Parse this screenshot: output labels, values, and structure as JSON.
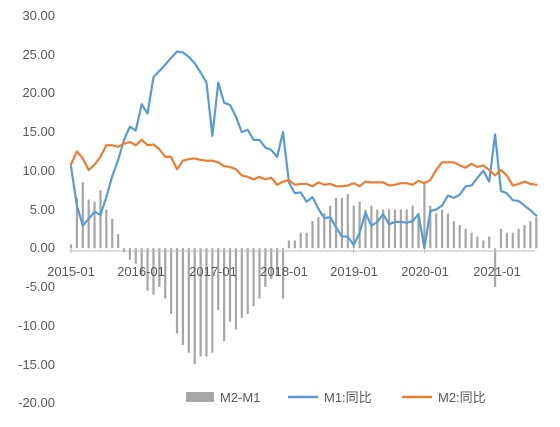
{
  "chart_data": {
    "type": "line",
    "title": "",
    "xlabel": "",
    "ylabel": "",
    "ylim": [
      -20,
      30
    ],
    "yticks": [
      "30.00",
      "25.00",
      "20.00",
      "15.00",
      "10.00",
      "5.00",
      "0.00",
      "-5.00",
      "-10.00",
      "-15.00",
      "-20.00"
    ],
    "xticks": [
      "2015-01",
      "2016-01",
      "2017-01",
      "2018-01",
      "2019-01",
      "2020-01",
      "2021-01"
    ],
    "grid": false,
    "legend_position": "bottom",
    "x": [
      "2015-01",
      "2015-02",
      "2015-03",
      "2015-04",
      "2015-05",
      "2015-06",
      "2015-07",
      "2015-08",
      "2015-09",
      "2015-10",
      "2015-11",
      "2015-12",
      "2016-01",
      "2016-02",
      "2016-03",
      "2016-04",
      "2016-05",
      "2016-06",
      "2016-07",
      "2016-08",
      "2016-09",
      "2016-10",
      "2016-11",
      "2016-12",
      "2017-01",
      "2017-02",
      "2017-03",
      "2017-04",
      "2017-05",
      "2017-06",
      "2017-07",
      "2017-08",
      "2017-09",
      "2017-10",
      "2017-11",
      "2017-12",
      "2018-01",
      "2018-02",
      "2018-03",
      "2018-04",
      "2018-05",
      "2018-06",
      "2018-07",
      "2018-08",
      "2018-09",
      "2018-10",
      "2018-11",
      "2018-12",
      "2019-01",
      "2019-02",
      "2019-03",
      "2019-04",
      "2019-05",
      "2019-06",
      "2019-07",
      "2019-08",
      "2019-09",
      "2019-10",
      "2019-11",
      "2019-12",
      "2020-01",
      "2020-02",
      "2020-03",
      "2020-04",
      "2020-05",
      "2020-06",
      "2020-07",
      "2020-08",
      "2020-09",
      "2020-10",
      "2020-11",
      "2020-12",
      "2021-01",
      "2021-02",
      "2021-03",
      "2021-04",
      "2021-05",
      "2021-06",
      "2021-07",
      "2021-08"
    ],
    "series": [
      {
        "name": "M2-M1",
        "type": "bar",
        "color": "#a6a6a6",
        "values": [
          0.5,
          6.5,
          8.5,
          6.3,
          6.0,
          7.5,
          5.0,
          3.8,
          1.8,
          -0.5,
          -1.5,
          -2.0,
          -3.5,
          -5.5,
          -6.0,
          -5.0,
          -6.5,
          -8.5,
          -11.0,
          -12.5,
          -13.5,
          -15.0,
          -14.0,
          -14.0,
          -13.5,
          -8.0,
          -12.0,
          -9.5,
          -10.5,
          -9.0,
          -8.5,
          -7.5,
          -6.5,
          -5.0,
          -4.0,
          -3.5,
          -6.5,
          1.0,
          1.0,
          2.0,
          2.0,
          3.5,
          4.0,
          4.5,
          5.5,
          6.5,
          6.5,
          7.0,
          5.5,
          6.0,
          5.0,
          5.5,
          5.0,
          5.0,
          5.0,
          5.0,
          5.0,
          5.0,
          5.5,
          4.5,
          8.5,
          5.5,
          4.5,
          5.0,
          4.5,
          3.5,
          3.0,
          2.5,
          2.0,
          1.5,
          1.0,
          1.5,
          -5.0,
          2.5,
          2.0,
          2.0,
          2.5,
          3.0,
          3.5,
          4.0
        ]
      },
      {
        "name": "M1:同比",
        "type": "line",
        "color": "#5b9bd5",
        "values": [
          10.6,
          5.5,
          2.9,
          3.8,
          4.7,
          4.3,
          6.6,
          9.3,
          11.4,
          14.0,
          15.7,
          15.2,
          18.6,
          17.4,
          22.1,
          22.9,
          23.7,
          24.6,
          25.4,
          25.3,
          24.7,
          23.9,
          22.7,
          21.4,
          14.5,
          21.4,
          18.8,
          18.5,
          17.0,
          15.0,
          15.3,
          14.0,
          14.0,
          13.0,
          12.7,
          11.8,
          15.0,
          8.5,
          7.1,
          7.2,
          6.0,
          6.6,
          5.1,
          3.9,
          4.0,
          2.7,
          1.5,
          1.5,
          0.4,
          2.0,
          4.6,
          2.9,
          3.4,
          4.4,
          3.1,
          3.4,
          3.4,
          3.3,
          3.5,
          4.4,
          0.0,
          4.8,
          5.0,
          5.5,
          6.8,
          6.5,
          6.9,
          8.0,
          8.1,
          9.1,
          10.0,
          8.6,
          14.7,
          7.4,
          7.1,
          6.2,
          6.1,
          5.5,
          4.9,
          4.2
        ]
      },
      {
        "name": "M2:同比",
        "type": "line",
        "color": "#ed7d31",
        "values": [
          10.8,
          12.5,
          11.6,
          10.1,
          10.8,
          11.8,
          13.3,
          13.3,
          13.1,
          13.5,
          13.7,
          13.3,
          14.0,
          13.3,
          13.4,
          12.8,
          11.8,
          11.8,
          10.2,
          11.3,
          11.5,
          11.6,
          11.4,
          11.3,
          11.3,
          11.1,
          10.6,
          10.5,
          10.2,
          9.4,
          9.2,
          8.9,
          9.2,
          8.9,
          9.1,
          8.2,
          8.6,
          8.8,
          8.2,
          8.3,
          8.3,
          8.0,
          8.5,
          8.2,
          8.3,
          8.0,
          8.0,
          8.1,
          8.4,
          8.0,
          8.6,
          8.5,
          8.5,
          8.5,
          8.1,
          8.2,
          8.4,
          8.4,
          8.2,
          8.7,
          8.4,
          8.8,
          10.1,
          11.1,
          11.1,
          11.1,
          10.7,
          10.4,
          10.9,
          10.5,
          10.7,
          10.1,
          9.4,
          10.1,
          9.4,
          8.1,
          8.3,
          8.6,
          8.3,
          8.2
        ]
      }
    ]
  }
}
